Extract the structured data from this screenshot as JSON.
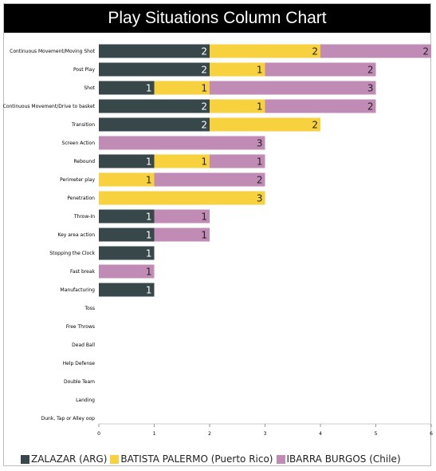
{
  "chart_data": {
    "type": "bar",
    "orientation": "horizontal",
    "stacked": true,
    "title": "Play Situations Column Chart",
    "categories": [
      "Continuous Movement/Moving Shot",
      "Post Play",
      "Shot",
      "Continuous Movement/Drive to basket",
      "Transition",
      "Screen Action",
      "Rebound",
      "Perimeter play",
      "Penetration",
      "Throw-In",
      "Key area action",
      "Stopping the Clock",
      "Fast break",
      "Manufacturing",
      "Toss",
      "Free Throws",
      "Dead Ball",
      "Help Defense",
      "Double Team",
      "Landing",
      "Dunk, Tap or Alley oop"
    ],
    "series": [
      {
        "name": "ZALAZAR (ARG)",
        "color": "#37474a",
        "label_color": "#ffffff",
        "values": [
          2,
          2,
          1,
          2,
          2,
          0,
          1,
          0,
          0,
          1,
          1,
          1,
          0,
          1,
          0,
          0,
          0,
          0,
          0,
          0,
          0
        ]
      },
      {
        "name": "BATISTA PALERMO (Puerto Rico)",
        "color": "#f7d23e",
        "label_color": "#222222",
        "values": [
          2,
          1,
          1,
          1,
          2,
          0,
          1,
          1,
          3,
          0,
          0,
          0,
          0,
          0,
          0,
          0,
          0,
          0,
          0,
          0,
          0
        ]
      },
      {
        "name": "IBARRA BURGOS (Chile)",
        "color": "#c08bb5",
        "label_color": "#222222",
        "values": [
          2,
          2,
          3,
          2,
          0,
          3,
          1,
          2,
          0,
          1,
          1,
          0,
          1,
          0,
          0,
          0,
          0,
          0,
          0,
          0,
          0
        ]
      }
    ],
    "xticks": [
      "0",
      "1",
      "2",
      "3",
      "4",
      "5",
      "6"
    ],
    "xlim": [
      0,
      6
    ],
    "grid": false,
    "legend_position": "bottom"
  }
}
